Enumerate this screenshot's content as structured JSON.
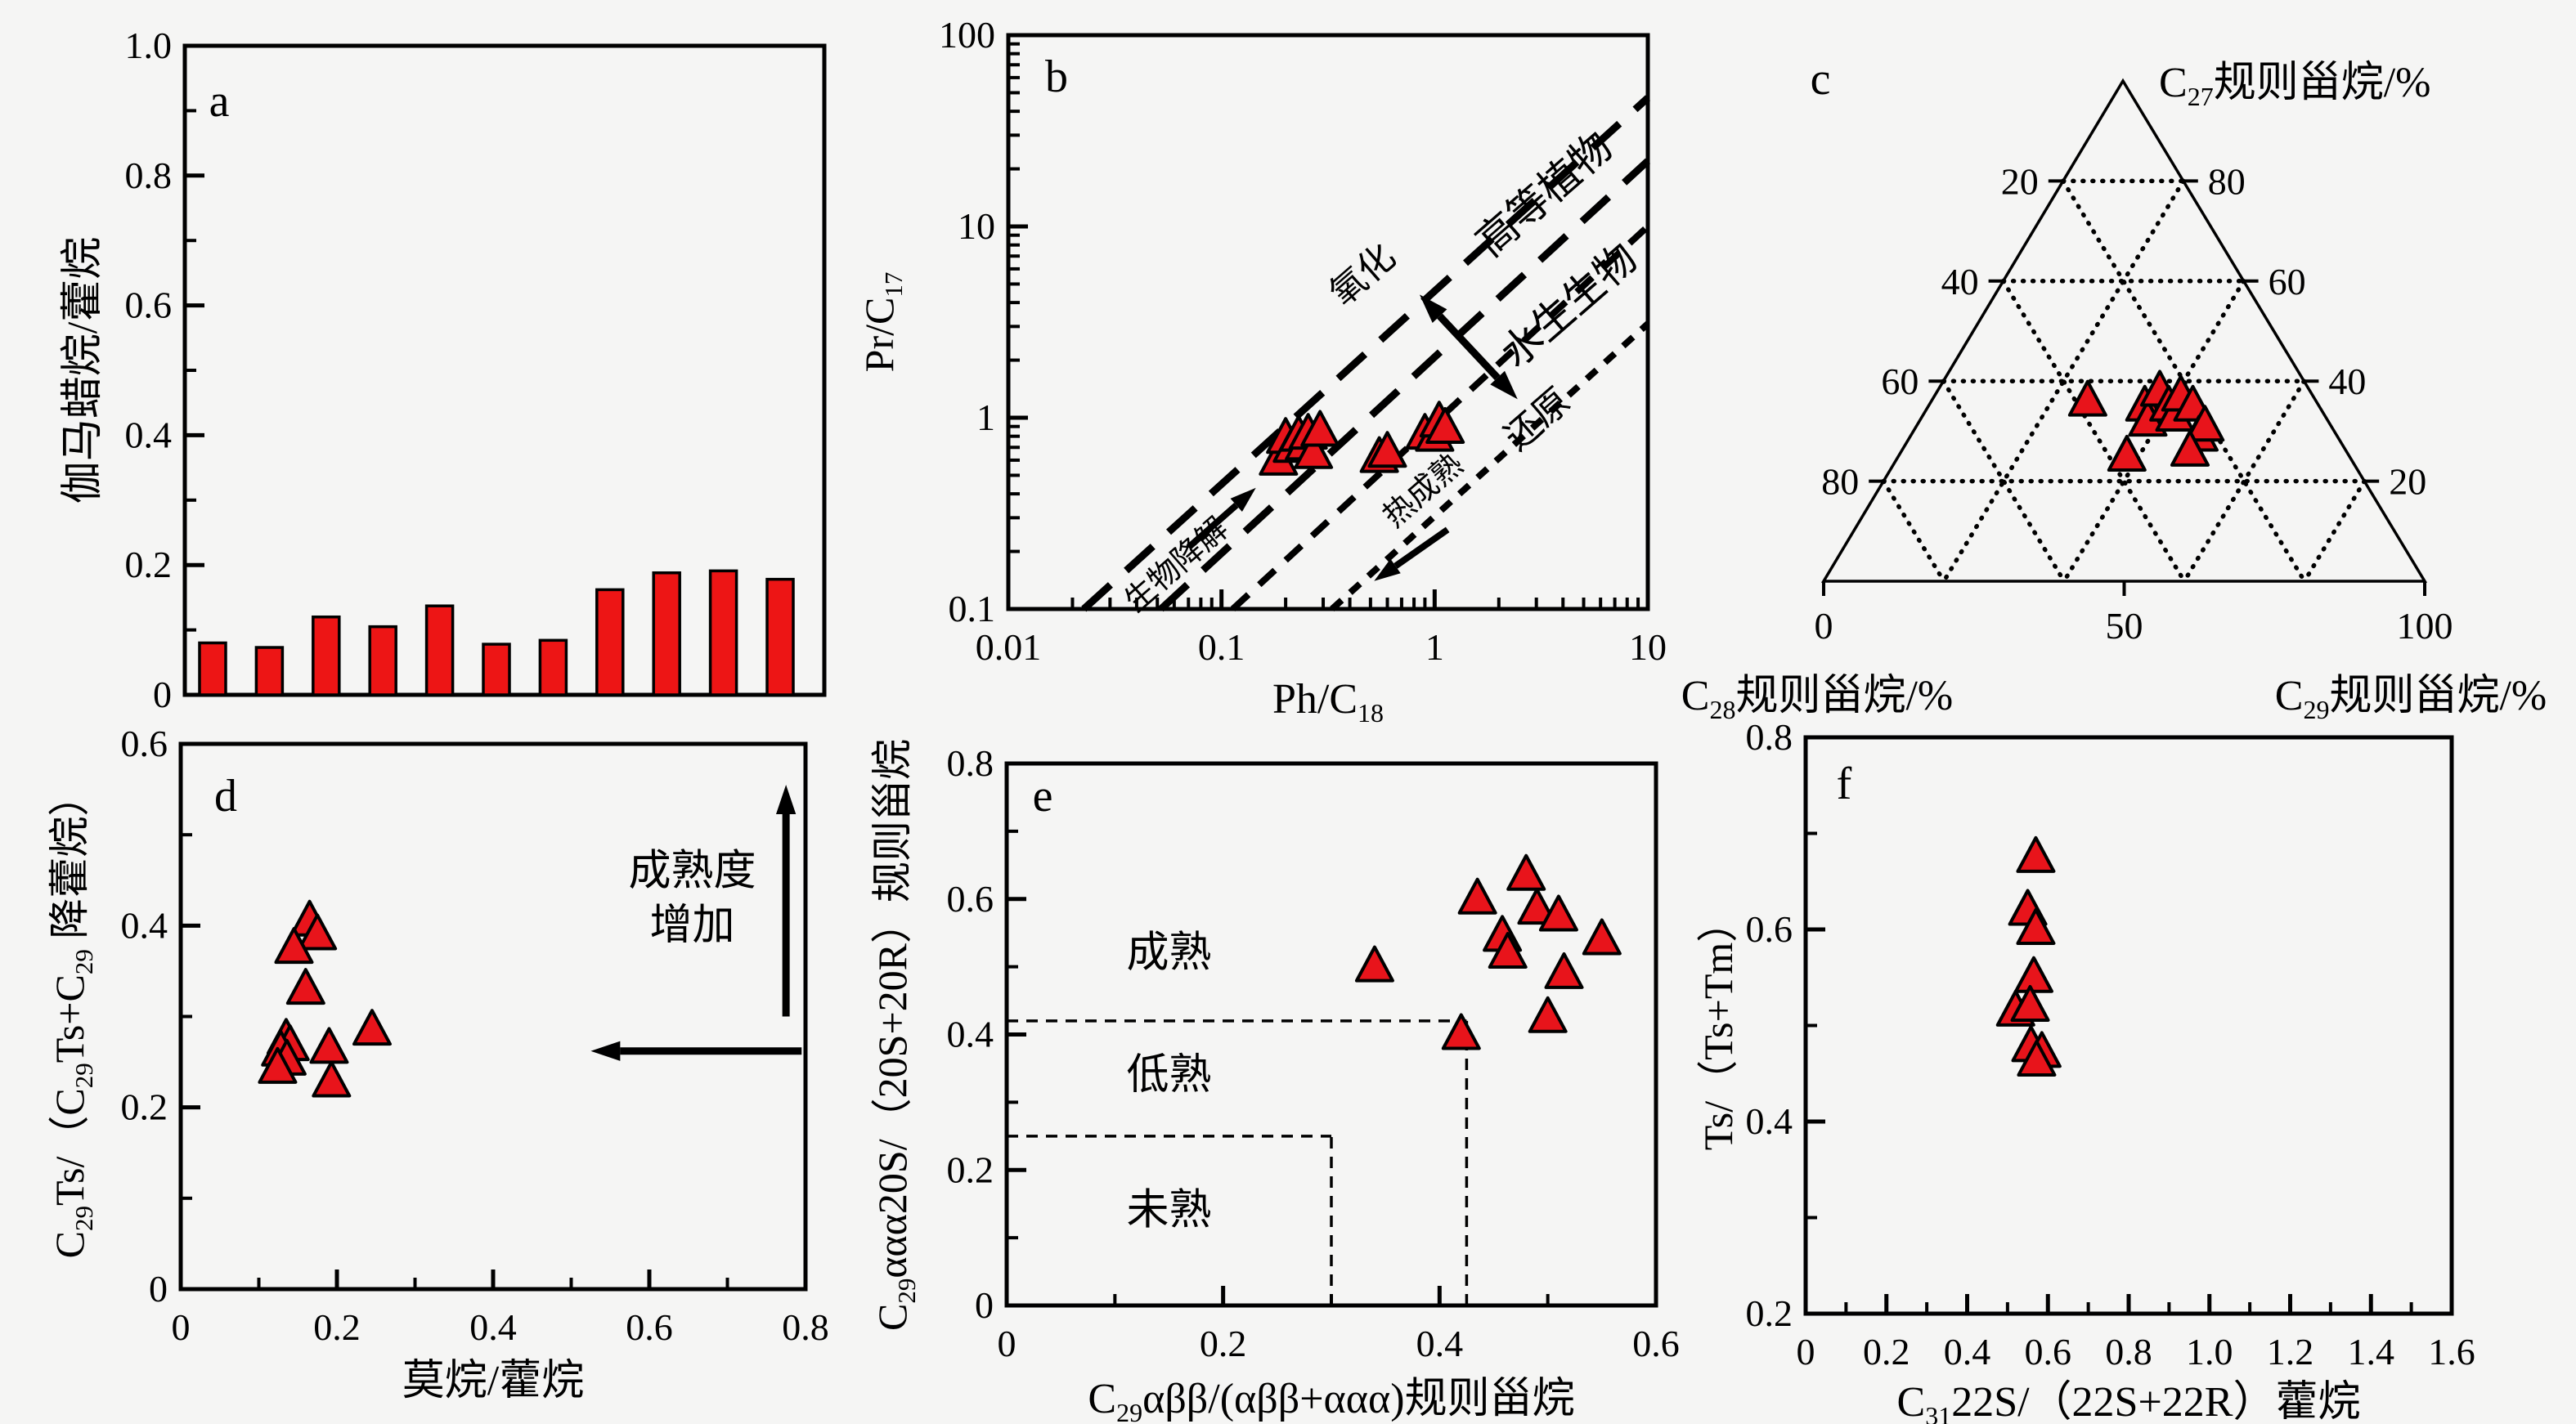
{
  "figure": {
    "background": "#f5f5f4",
    "axis_color": "#000000",
    "marker": {
      "shape": "triangle-icon",
      "fill": "#e8141b",
      "stroke": "#000000"
    },
    "bar_color": "#ed1515"
  },
  "chart_data": [
    {
      "panel": "a",
      "type": "bar",
      "letter": "a",
      "ylabel": "伽马蜡烷/藿烷",
      "xlabel": "",
      "ylim": [
        0,
        1.0
      ],
      "yticks": [
        [
          0,
          "0"
        ],
        [
          0.2,
          "0.2"
        ],
        [
          0.4,
          "0.4"
        ],
        [
          0.6,
          "0.6"
        ],
        [
          0.8,
          "0.8"
        ],
        [
          1.0,
          "1.0"
        ]
      ],
      "yminor_step": 0.1,
      "grid": false,
      "values": [
        0.08,
        0.073,
        0.12,
        0.105,
        0.137,
        0.078,
        0.084,
        0.162,
        0.188,
        0.191,
        0.178
      ]
    },
    {
      "panel": "b",
      "type": "scatter",
      "letter": "b",
      "xscale": "log",
      "yscale": "log",
      "xlabel": "Ph/C_{18}",
      "ylabel": "Pr/C_{17}",
      "xlim": [
        0.01,
        10
      ],
      "ylim": [
        0.1,
        100
      ],
      "xticks": [
        [
          0.01,
          "0.01"
        ],
        [
          0.1,
          "0.1"
        ],
        [
          1,
          "1"
        ],
        [
          10,
          "10"
        ]
      ],
      "yticks": [
        [
          0.1,
          "0.1"
        ],
        [
          1,
          "1"
        ],
        [
          10,
          "10"
        ],
        [
          100,
          "100"
        ]
      ],
      "points": [
        [
          0.185,
          0.6
        ],
        [
          0.2,
          0.78
        ],
        [
          0.215,
          0.7
        ],
        [
          0.23,
          0.8
        ],
        [
          0.245,
          0.72
        ],
        [
          0.255,
          0.82
        ],
        [
          0.27,
          0.65
        ],
        [
          0.29,
          0.85
        ],
        [
          0.55,
          0.62
        ],
        [
          0.6,
          0.66
        ],
        [
          0.9,
          0.82
        ],
        [
          1.0,
          0.8
        ],
        [
          1.05,
          0.95
        ],
        [
          1.12,
          0.88
        ]
      ],
      "lines": [
        {
          "from": [
            0.0226,
            0.1
          ],
          "to": [
            10,
            47
          ],
          "dash": "44 26",
          "width": 9
        },
        {
          "from": [
            0.052,
            0.1
          ],
          "to": [
            10,
            22
          ],
          "dash": "44 26",
          "width": 9
        },
        {
          "from": [
            0.113,
            0.1
          ],
          "to": [
            10,
            10
          ],
          "dash": "26 18",
          "width": 8
        },
        {
          "from": [
            0.33,
            0.1
          ],
          "to": [
            10,
            3.1
          ],
          "dash": "16 14",
          "width": 8
        }
      ],
      "annotations": [
        {
          "text": "高等植物",
          "x": 3.6,
          "y": 13,
          "rotate": -41,
          "size": 50
        },
        {
          "text": "水生生物",
          "x": 4.7,
          "y": 3.4,
          "rotate": -41,
          "size": 50
        },
        {
          "text": "氧化",
          "x": 0.5,
          "y": 5.0,
          "rotate": -41,
          "size": 44
        },
        {
          "text": "还原",
          "x": 3.3,
          "y": 0.88,
          "rotate": -41,
          "size": 44
        },
        {
          "text": "生物降解",
          "x": 0.066,
          "y": 0.155,
          "rotate": -41,
          "size": 38
        },
        {
          "text": "热成熟",
          "x": 0.95,
          "y": 0.38,
          "rotate": -41,
          "size": 38
        }
      ],
      "arrows": [
        {
          "from": [
            0.85,
            4.4
          ],
          "to": [
            2.45,
            1.25
          ],
          "double": true,
          "width": 9
        },
        {
          "from": [
            0.07,
            0.21
          ],
          "to": [
            0.145,
            0.43
          ],
          "double": false,
          "width": 8
        },
        {
          "from": [
            1.15,
            0.26
          ],
          "to": [
            0.52,
            0.14
          ],
          "double": false,
          "width": 8
        }
      ]
    },
    {
      "panel": "c",
      "type": "ternary",
      "letter": "c",
      "apex_label": "C_{27}规则甾烷/%",
      "left_label": "C_{28}规则甾烷/%",
      "right_label": "C_{29}规则甾烷/%",
      "grid_step": 20,
      "left_tick_labels": [
        "20",
        "40",
        "60",
        "80"
      ],
      "right_tick_labels": [
        "80",
        "60",
        "40",
        "20"
      ],
      "bottom_tick_labels": [
        "0",
        "50",
        "100"
      ],
      "points": [
        [
          36,
          38,
          26
        ],
        [
          35,
          29,
          36
        ],
        [
          32,
          30,
          38
        ],
        [
          38,
          25,
          37
        ],
        [
          35,
          25,
          40
        ],
        [
          33,
          25,
          42
        ],
        [
          37,
          22,
          41
        ],
        [
          35,
          21,
          44
        ],
        [
          29,
          23,
          48
        ],
        [
          31,
          21,
          48
        ],
        [
          25,
          37,
          38
        ],
        [
          26,
          26,
          48
        ]
      ]
    },
    {
      "panel": "d",
      "type": "scatter",
      "letter": "d",
      "xlabel": "莫烷/藿烷",
      "ylabel": "C_{29}Ts/（C_{29}Ts+C_{29} 降藿烷）",
      "xlim": [
        0,
        0.8
      ],
      "ylim": [
        0,
        0.6
      ],
      "xticks": [
        [
          0,
          "0"
        ],
        [
          0.2,
          "0.2"
        ],
        [
          0.4,
          "0.4"
        ],
        [
          0.6,
          "0.6"
        ],
        [
          0.8,
          "0.8"
        ]
      ],
      "yticks": [
        [
          0,
          "0"
        ],
        [
          0.2,
          "0.2"
        ],
        [
          0.4,
          "0.4"
        ],
        [
          0.6,
          "0.6"
        ]
      ],
      "xminor_step": 0.1,
      "yminor_step": 0.1,
      "points": [
        [
          0.165,
          0.405
        ],
        [
          0.175,
          0.39
        ],
        [
          0.145,
          0.375
        ],
        [
          0.16,
          0.33
        ],
        [
          0.135,
          0.275
        ],
        [
          0.14,
          0.268
        ],
        [
          0.128,
          0.262
        ],
        [
          0.136,
          0.252
        ],
        [
          0.124,
          0.243
        ],
        [
          0.19,
          0.265
        ],
        [
          0.245,
          0.285
        ],
        [
          0.193,
          0.228
        ]
      ],
      "annotations": [
        {
          "text": "成熟度",
          "x": 0.655,
          "y": 0.445,
          "size": 52
        },
        {
          "text": "增加",
          "x": 0.655,
          "y": 0.385,
          "size": 52
        }
      ],
      "arrows": [
        {
          "from": [
            0.775,
            0.3
          ],
          "to": [
            0.775,
            0.555
          ],
          "double": false,
          "width": 9
        },
        {
          "from": [
            0.795,
            0.262
          ],
          "to": [
            0.525,
            0.262
          ],
          "double": false,
          "width": 9
        }
      ]
    },
    {
      "panel": "e",
      "type": "scatter",
      "letter": "e",
      "xlabel": "C_{29}αββ/(αββ+ααα)规则甾烷",
      "ylabel": "C_{29}ααα20S/（20S+20R）规则甾烷",
      "xlim": [
        0,
        0.6
      ],
      "ylim": [
        0,
        0.8
      ],
      "xticks": [
        [
          0,
          "0"
        ],
        [
          0.2,
          "0.2"
        ],
        [
          0.4,
          "0.4"
        ],
        [
          0.6,
          "0.6"
        ]
      ],
      "yticks": [
        [
          0,
          "0"
        ],
        [
          0.2,
          "0.2"
        ],
        [
          0.4,
          "0.4"
        ],
        [
          0.6,
          "0.6"
        ],
        [
          0.8,
          "0.8"
        ]
      ],
      "xminor_step": 0.1,
      "yminor_step": 0.1,
      "points": [
        [
          0.34,
          0.5
        ],
        [
          0.42,
          0.4
        ],
        [
          0.435,
          0.6
        ],
        [
          0.458,
          0.545
        ],
        [
          0.463,
          0.52
        ],
        [
          0.48,
          0.635
        ],
        [
          0.49,
          0.585
        ],
        [
          0.5,
          0.425
        ],
        [
          0.51,
          0.575
        ],
        [
          0.515,
          0.49
        ],
        [
          0.55,
          0.54
        ]
      ],
      "boundaries": [
        {
          "y": 0.42,
          "x_from": 0,
          "x_to": 0.425
        },
        {
          "x": 0.425,
          "y_from": 0,
          "y_to": 0.42
        },
        {
          "y": 0.25,
          "x_from": 0,
          "x_to": 0.3
        },
        {
          "x": 0.3,
          "y_from": 0,
          "y_to": 0.25
        }
      ],
      "annotations": [
        {
          "text": "成熟",
          "x": 0.15,
          "y": 0.5,
          "size": 52
        },
        {
          "text": "低熟",
          "x": 0.15,
          "y": 0.32,
          "size": 52
        },
        {
          "text": "未熟",
          "x": 0.15,
          "y": 0.12,
          "size": 52
        }
      ]
    },
    {
      "panel": "f",
      "type": "scatter",
      "letter": "f",
      "xlabel": "C_{31}22S/（22S+22R）藿烷",
      "ylabel": "Ts/（Ts+Tm）",
      "xlim": [
        0,
        1.6
      ],
      "ylim": [
        0.2,
        0.8
      ],
      "xticks": [
        [
          0,
          "0"
        ],
        [
          0.2,
          "0.2"
        ],
        [
          0.4,
          "0.4"
        ],
        [
          0.6,
          "0.6"
        ],
        [
          0.8,
          "0.8"
        ],
        [
          1.0,
          "1.0"
        ],
        [
          1.2,
          "1.2"
        ],
        [
          1.4,
          "1.4"
        ],
        [
          1.6,
          "1.6"
        ]
      ],
      "yticks": [
        [
          0.2,
          "0.2"
        ],
        [
          0.4,
          "0.4"
        ],
        [
          0.6,
          "0.6"
        ],
        [
          0.8,
          "0.8"
        ]
      ],
      "xminor_step": 0.1,
      "yminor_step": 0.1,
      "points": [
        [
          0.57,
          0.675
        ],
        [
          0.55,
          0.62
        ],
        [
          0.57,
          0.6
        ],
        [
          0.565,
          0.55
        ],
        [
          0.52,
          0.515
        ],
        [
          0.556,
          0.52
        ],
        [
          0.558,
          0.478
        ],
        [
          0.585,
          0.472
        ],
        [
          0.572,
          0.463
        ]
      ]
    }
  ]
}
